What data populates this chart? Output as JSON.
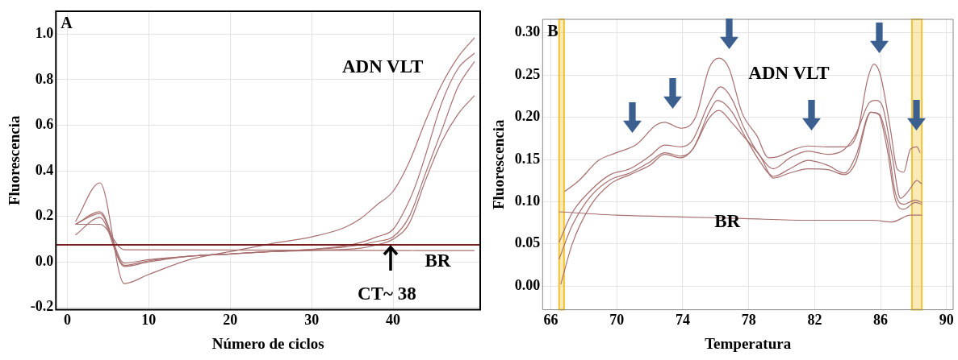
{
  "chart_data": [
    {
      "type": "line",
      "xlabel": "Número de ciclos",
      "ylabel": "Fluorescencia",
      "xlim": [
        -1.4,
        50.7
      ],
      "ylim": [
        -0.21,
        1.1
      ],
      "xticks": [
        0,
        10,
        20,
        30,
        40
      ],
      "yticks": [
        {
          "value": -0.2,
          "label": "-0.2"
        },
        {
          "value": 0,
          "label": "0.0"
        },
        {
          "value": 0.2,
          "label": "0.2"
        },
        {
          "value": 0.4,
          "label": "0.4"
        },
        {
          "value": 0.6,
          "label": "0.6"
        },
        {
          "value": 0.8,
          "label": "0.8"
        },
        {
          "value": 1,
          "label": "1.0"
        }
      ],
      "grid": true,
      "legend": false,
      "marker": "none",
      "line_style": "solid",
      "series": [
        {
          "color": "#a86f6f",
          "x": [
            1,
            4,
            7,
            10,
            15,
            20,
            25,
            30,
            34,
            36,
            38,
            40,
            42,
            44,
            46,
            48,
            50
          ],
          "values": [
            0.177,
            0.347,
            -0.095,
            -0.055,
            0.01,
            0.045,
            0.08,
            0.11,
            0.15,
            0.19,
            0.25,
            0.31,
            0.44,
            0.62,
            0.78,
            0.9,
            0.984
          ]
        },
        {
          "color": "#a86f6f",
          "x": [
            1,
            4,
            7,
            10,
            15,
            20,
            25,
            30,
            34,
            36,
            38,
            40,
            42,
            43,
            44,
            46,
            48,
            50
          ],
          "values": [
            0.165,
            0.22,
            -0.005,
            0.01,
            0.025,
            0.035,
            0.045,
            0.055,
            0.07,
            0.085,
            0.11,
            0.143,
            0.27,
            0.36,
            0.47,
            0.7,
            0.85,
            0.916
          ]
        },
        {
          "color": "#a86f6f",
          "x": [
            1,
            4,
            7,
            10,
            15,
            20,
            25,
            30,
            34,
            36,
            38,
            40,
            42,
            44,
            46,
            48,
            50
          ],
          "values": [
            0.165,
            0.212,
            -0.015,
            0.005,
            0.025,
            0.035,
            0.045,
            0.055,
            0.065,
            0.075,
            0.09,
            0.11,
            0.2,
            0.39,
            0.58,
            0.77,
            0.88
          ]
        },
        {
          "color": "#a86f6f",
          "x": [
            1,
            4,
            7,
            10,
            15,
            20,
            25,
            30,
            34,
            36,
            38,
            40,
            42,
            44,
            46,
            48,
            50
          ],
          "values": [
            0.118,
            0.195,
            -0.02,
            0,
            0.025,
            0.035,
            0.045,
            0.05,
            0.055,
            0.06,
            0.075,
            0.1,
            0.17,
            0.36,
            0.53,
            0.65,
            0.73
          ]
        },
        {
          "color": "#a86f6f",
          "x": [
            1,
            4,
            7,
            50
          ],
          "values": [
            0.165,
            0.165,
            0.053,
            0.05
          ]
        }
      ],
      "ref_lines": [
        {
          "axis": "y",
          "value": 0.075,
          "color": "#7b1e1e"
        }
      ],
      "annotations": [
        "A",
        "ADN VLT",
        "BR",
        "CT~ 38"
      ]
    },
    {
      "type": "line",
      "xlabel": "Temperatura",
      "ylabel": "Fluorescencia",
      "xlim": [
        65.5,
        90.4
      ],
      "ylim": [
        -0.028,
        0.316
      ],
      "xticks": [
        66,
        70,
        74,
        78,
        82,
        86,
        90
      ],
      "yticks": [
        {
          "value": 0,
          "label": "0.00"
        },
        {
          "value": 0.05,
          "label": "0.05"
        },
        {
          "value": 0.1,
          "label": "0.10"
        },
        {
          "value": 0.15,
          "label": "0.15"
        },
        {
          "value": 0.2,
          "label": "0.20"
        },
        {
          "value": 0.25,
          "label": "0.25"
        },
        {
          "value": 0.3,
          "label": "0.30"
        }
      ],
      "grid": true,
      "legend": false,
      "marker": "none",
      "line_style": "solid",
      "series": [
        {
          "color": "#a86f6f",
          "x": [
            66.84,
            67.7,
            68.9,
            69.97,
            71.2,
            72.4,
            72.9,
            73.9,
            74.8,
            75.6,
            76.2,
            76.8,
            77.6,
            78.5,
            79.2,
            79.7,
            80.9,
            81.6,
            82.7,
            83.8,
            84.6,
            85.2,
            85.6,
            86.0,
            86.6,
            87.0,
            87.4,
            87.8,
            88.2,
            88.4
          ],
          "values": [
            0.112,
            0.125,
            0.149,
            0.158,
            0.168,
            0.191,
            0.194,
            0.187,
            0.201,
            0.258,
            0.27,
            0.258,
            0.205,
            0.178,
            0.152,
            0.153,
            0.163,
            0.166,
            0.165,
            0.165,
            0.182,
            0.244,
            0.263,
            0.249,
            0.185,
            0.139,
            0.135,
            0.162,
            0.165,
            0.158
          ]
        },
        {
          "color": "#a86f6f",
          "x": [
            66.5,
            67.3,
            68.4,
            69.6,
            70.8,
            72.0,
            72.9,
            73.9,
            74.6,
            75.6,
            76.3,
            77.0,
            77.7,
            78.7,
            79.5,
            80.5,
            81.6,
            82.8,
            83.8,
            84.5,
            85.3,
            85.7,
            86.1,
            86.7,
            87.2,
            87.7,
            88.2,
            88.5
          ],
          "values": [
            0.052,
            0.087,
            0.113,
            0.132,
            0.139,
            0.154,
            0.167,
            0.165,
            0.173,
            0.217,
            0.236,
            0.221,
            0.188,
            0.154,
            0.139,
            0.152,
            0.16,
            0.156,
            0.162,
            0.18,
            0.217,
            0.22,
            0.214,
            0.154,
            0.104,
            0.113,
            0.125,
            0.121
          ]
        },
        {
          "color": "#a86f6f",
          "x": [
            66.5,
            67.3,
            68.4,
            69.6,
            70.8,
            72.0,
            72.9,
            73.9,
            74.6,
            75.6,
            76.1,
            77.0,
            77.7,
            78.7,
            79.5,
            80.5,
            81.6,
            82.8,
            83.8,
            84.5,
            85.4,
            85.9,
            86.4,
            86.9,
            87.4,
            88.1,
            88.5
          ],
          "values": [
            0.032,
            0.072,
            0.106,
            0.126,
            0.134,
            0.147,
            0.158,
            0.154,
            0.162,
            0.206,
            0.22,
            0.206,
            0.18,
            0.147,
            0.13,
            0.139,
            0.149,
            0.143,
            0.134,
            0.154,
            0.206,
            0.204,
            0.173,
            0.11,
            0.097,
            0.102,
            0.099
          ]
        },
        {
          "color": "#a86f6f",
          "x": [
            66.6,
            67.3,
            68.4,
            69.6,
            70.8,
            72.0,
            72.9,
            73.9,
            74.6,
            75.6,
            76.2,
            77.0,
            77.7,
            78.7,
            79.5,
            80.5,
            81.6,
            82.8,
            83.8,
            84.5,
            85.4,
            85.9,
            86.4,
            86.9,
            87.4,
            88.1,
            88.5
          ],
          "values": [
            0.002,
            0.05,
            0.095,
            0.121,
            0.132,
            0.143,
            0.156,
            0.152,
            0.162,
            0.199,
            0.208,
            0.193,
            0.177,
            0.154,
            0.128,
            0.134,
            0.139,
            0.138,
            0.132,
            0.147,
            0.206,
            0.203,
            0.162,
            0.102,
            0.091,
            0.099,
            0.097
          ]
        },
        {
          "color": "#a86f6f",
          "x": [
            66.5,
            70.0,
            73.9,
            77.7,
            81.6,
            85.5,
            86.7,
            87.8,
            88.5
          ],
          "values": [
            0.088,
            0.084,
            0.082,
            0.08,
            0.078,
            0.078,
            0.076,
            0.084,
            0.084
          ]
        }
      ],
      "bands": [
        {
          "axis": "x",
          "from": 66.5,
          "to": 66.8,
          "color": "#f2c230"
        },
        {
          "axis": "x",
          "from": 87.9,
          "to": 88.5,
          "color": "#f2c230"
        }
      ],
      "annotations": [
        "B",
        "ADN VLT",
        "BR"
      ]
    }
  ]
}
